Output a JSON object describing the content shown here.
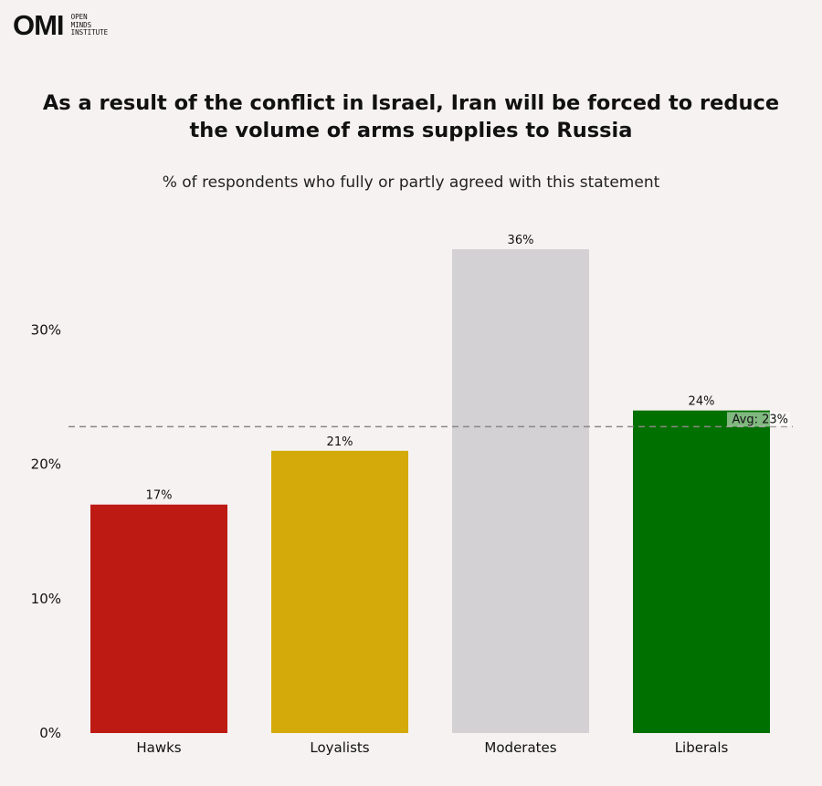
{
  "logo": {
    "mark": "OMI",
    "lines": [
      "OPEN",
      "MINDS",
      "INSTITUTE"
    ]
  },
  "chart_data": {
    "type": "bar",
    "title_lines": [
      "As a result of the conflict in Israel, Iran will be forced to reduce",
      "the volume of arms supplies to Russia"
    ],
    "subtitle": "% of respondents who fully or partly agreed with this statement",
    "categories": [
      "Hawks",
      "Loyalists",
      "Moderates",
      "Liberals"
    ],
    "values": [
      17,
      21,
      36,
      24
    ],
    "value_labels": [
      "17%",
      "21%",
      "36%",
      "24%"
    ],
    "colors": [
      "#be1a14",
      "#d4aa0a",
      "#d4d1d4",
      "#007000"
    ],
    "yticks": [
      0,
      10,
      20,
      30
    ],
    "ytick_labels": [
      "0%",
      "10%",
      "20%",
      "30%"
    ],
    "ylim": [
      0,
      36
    ],
    "average": 23,
    "average_label": "Avg: 23%",
    "xlabel": "",
    "ylabel": "",
    "grid": false
  }
}
